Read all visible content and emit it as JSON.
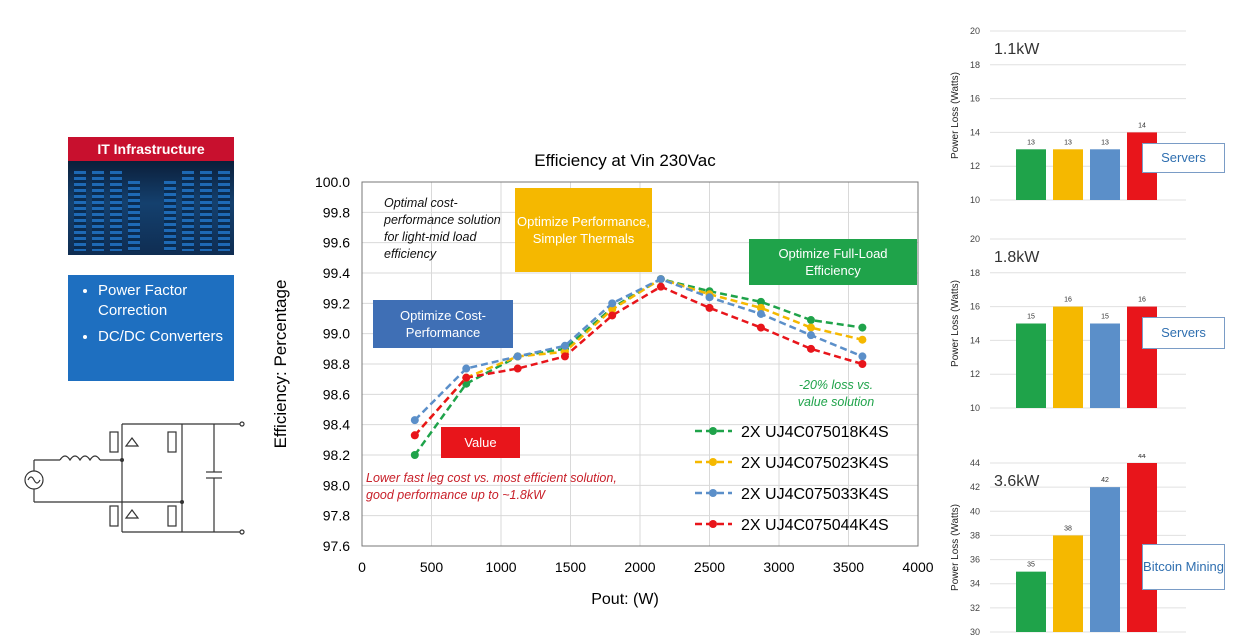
{
  "it_panel": {
    "header": "IT Infrastructure",
    "bullets": [
      "Power Factor Correction",
      "DC/DC Converters"
    ]
  },
  "callouts": {
    "optimal_note": "Optimal cost-performance solution for light-mid load efficiency",
    "opt_performance": "Optimize Performance, Simpler Thermals",
    "opt_full_load": "Optimize Full-Load Efficiency",
    "opt_cost_performance": "Optimize Cost-Performance",
    "value": "Value",
    "loss_note": "-20% loss vs. value solution",
    "lower_cost_note": "Lower fast leg cost vs. most efficient solution, good performance up to ~1.8kW"
  },
  "colors": {
    "green": "#1fa34a",
    "yellow": "#f5b800",
    "blue": "#5b8fc9",
    "red": "#e8151b",
    "orange_box": "#f5b800",
    "green_box": "#1fa34a",
    "blue_box": "#3f6fb5",
    "red_box": "#e8151b"
  },
  "chart_data": [
    {
      "type": "line",
      "title": "Efficiency at Vin 230Vac",
      "xlabel": "Pout: (W)",
      "ylabel": "Efficiency: Percentage",
      "xlim": [
        0,
        4000
      ],
      "ylim": [
        97.6,
        100.0
      ],
      "xticks": [
        "0",
        "500",
        "1000",
        "1500",
        "2000",
        "2500",
        "3000",
        "3500",
        "4000"
      ],
      "yticks": [
        "97.6",
        "97.8",
        "98.0",
        "98.2",
        "98.4",
        "98.6",
        "98.8",
        "99.0",
        "99.2",
        "99.4",
        "99.6",
        "99.8",
        "100.0"
      ],
      "grid": true,
      "legend": "bottom-right",
      "series": [
        {
          "name": "2X UJ4C075018K4S",
          "color": "#1fa34a",
          "x": [
            380,
            750,
            1120,
            1460,
            1800,
            2150,
            2500,
            2870,
            3230,
            3600
          ],
          "y": [
            98.2,
            98.67,
            98.85,
            98.9,
            99.17,
            99.36,
            99.28,
            99.21,
            99.09,
            99.04
          ]
        },
        {
          "name": "2X UJ4C075023K4S",
          "color": "#f5b800",
          "x": [
            380,
            750,
            1120,
            1460,
            1800,
            2150,
            2500,
            2870,
            3230,
            3600
          ],
          "y": [
            98.33,
            98.71,
            98.85,
            98.88,
            99.16,
            99.36,
            99.26,
            99.17,
            99.04,
            98.96
          ]
        },
        {
          "name": "2X UJ4C075033K4S",
          "color": "#5b8fc9",
          "x": [
            380,
            750,
            1120,
            1460,
            1800,
            2150,
            2500,
            2870,
            3230,
            3600
          ],
          "y": [
            98.43,
            98.77,
            98.85,
            98.92,
            99.2,
            99.36,
            99.24,
            99.13,
            98.99,
            98.85
          ]
        },
        {
          "name": "2X UJ4C075044K4S",
          "color": "#e8151b",
          "x": [
            380,
            750,
            1120,
            1460,
            1800,
            2150,
            2500,
            2870,
            3230,
            3600
          ],
          "y": [
            98.33,
            98.71,
            98.77,
            98.85,
            99.12,
            99.31,
            99.17,
            99.04,
            98.9,
            98.8
          ]
        }
      ]
    },
    {
      "type": "bar",
      "title": "1.1kW",
      "ylabel": "Power Loss (Watts)",
      "ylim": [
        10,
        20
      ],
      "yticks": [
        "10",
        "12",
        "14",
        "16",
        "18",
        "20"
      ],
      "values": [
        13,
        13,
        13,
        14
      ],
      "labels": [
        "13",
        "13",
        "13",
        "14"
      ],
      "colors": [
        "#1fa34a",
        "#f5b800",
        "#5b8fc9",
        "#e8151b"
      ],
      "tag": "Servers"
    },
    {
      "type": "bar",
      "title": "1.8kW",
      "ylabel": "Power Loss (Watts)",
      "ylim": [
        10,
        20
      ],
      "yticks": [
        "10",
        "12",
        "14",
        "16",
        "18",
        "20"
      ],
      "values": [
        15,
        16,
        15,
        16
      ],
      "labels": [
        "15",
        "16",
        "15",
        "16"
      ],
      "colors": [
        "#1fa34a",
        "#f5b800",
        "#5b8fc9",
        "#e8151b"
      ],
      "tag": "Servers"
    },
    {
      "type": "bar",
      "title": "3.6kW",
      "ylabel": "Power Loss (Watts)",
      "ylim": [
        30,
        44
      ],
      "yticks": [
        "30",
        "32",
        "34",
        "36",
        "38",
        "40",
        "42",
        "44"
      ],
      "values": [
        35,
        38,
        42,
        44
      ],
      "labels": [
        "35",
        "38",
        "42",
        "44"
      ],
      "colors": [
        "#1fa34a",
        "#f5b800",
        "#5b8fc9",
        "#e8151b"
      ],
      "tag": "Bitcoin Mining"
    }
  ]
}
